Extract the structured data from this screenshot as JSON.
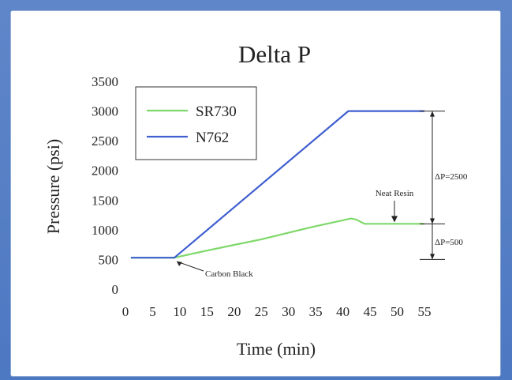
{
  "chart_data": {
    "type": "line",
    "title": "Delta P",
    "xlabel": "Time (min)",
    "ylabel": "Pressure (psi)",
    "xlim": [
      0,
      55
    ],
    "ylim": [
      0,
      3500
    ],
    "x_ticks": [
      0,
      5,
      10,
      15,
      20,
      25,
      30,
      35,
      40,
      45,
      50,
      55
    ],
    "y_ticks": [
      0,
      500,
      1000,
      1500,
      2000,
      2500,
      3000,
      3500
    ],
    "x_tick_labels": [
      "0",
      "5",
      "10",
      "15",
      "20",
      "25",
      "30",
      "35",
      "40",
      "45",
      "50",
      "55"
    ],
    "y_tick_labels": [
      "0",
      "500",
      "1000",
      "1500",
      "2000",
      "2500",
      "3000",
      "3500"
    ],
    "grid": false,
    "legend": "top-left",
    "series": [
      {
        "name": "SR730",
        "color": "#7fd86a",
        "points": [
          [
            1,
            530
          ],
          [
            9,
            530
          ],
          [
            15,
            650
          ],
          [
            20,
            745
          ],
          [
            25,
            840
          ],
          [
            30,
            950
          ],
          [
            35,
            1060
          ],
          [
            41.5,
            1190
          ],
          [
            42.5,
            1170
          ],
          [
            44,
            1100
          ],
          [
            55,
            1100
          ]
        ]
      },
      {
        "name": "N762",
        "color": "#3f5fcf",
        "points": [
          [
            1,
            530
          ],
          [
            9,
            530
          ],
          [
            41,
            3000
          ],
          [
            55,
            3000
          ]
        ]
      }
    ],
    "annotations": {
      "carbon_black": "Carbon Black",
      "neat_resin": "Neat Resin",
      "dp_2500": "ΔP=2500",
      "dp_500": "ΔP=500"
    }
  }
}
